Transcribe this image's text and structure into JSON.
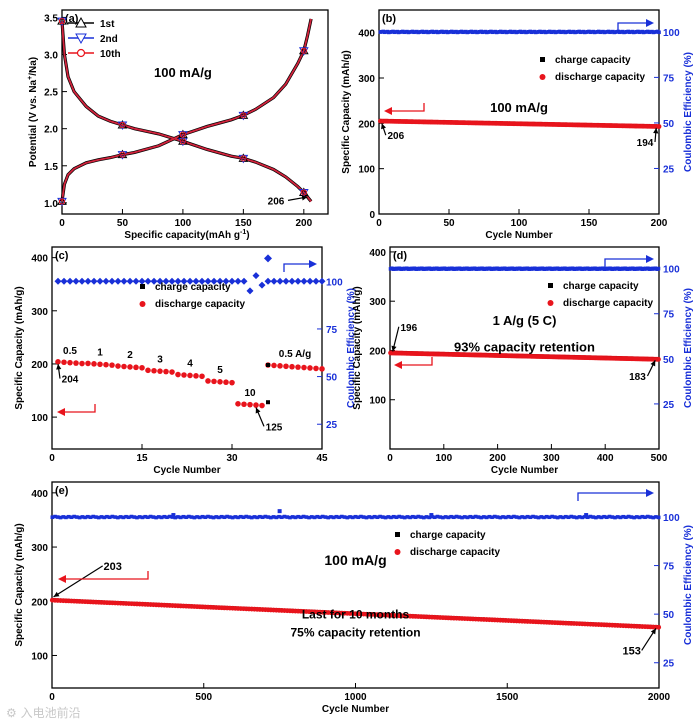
{
  "watermark": "⚙ 入电池前沿",
  "colors": {
    "black": "#000000",
    "red": "#e8141c",
    "blue": "#1930d8",
    "redline": "#d2233c",
    "axis": "#000000"
  },
  "chart_data": [
    {
      "id": "a",
      "type": "line",
      "panel_label": "(a)",
      "title": "",
      "xlabel": "Specific capacity(mAh g",
      "xlabel_sup": "-1",
      "xlabel_end": ")",
      "ylabel": "Potential (V vs. Na",
      "ylabel_sup": "+",
      "ylabel_end": "/Na)",
      "xlim": [
        0,
        220
      ],
      "ylim": [
        0.85,
        3.6
      ],
      "xticks": [
        0,
        50,
        100,
        150,
        200
      ],
      "yticks": [
        1.0,
        1.5,
        2.0,
        2.5,
        3.0,
        3.5
      ],
      "ytick_labels": [
        "1.0",
        "1.5",
        "2.0",
        "2.5",
        "3.0",
        "3.5"
      ],
      "legend": [
        "1st",
        "2nd",
        "10th"
      ],
      "annotations": [
        {
          "text": "100 mA/g",
          "x": 100,
          "y": 2.7
        },
        {
          "text": "206",
          "x": 177,
          "y": 0.98,
          "arrow_to": [
            203,
            1.08
          ]
        }
      ],
      "discharge": {
        "x": [
          0,
          2,
          5,
          10,
          20,
          30,
          40,
          50,
          60,
          80,
          100,
          120,
          140,
          150,
          160,
          175,
          185,
          195,
          200,
          203,
          206
        ],
        "y": [
          3.45,
          3.0,
          2.7,
          2.5,
          2.3,
          2.17,
          2.1,
          2.05,
          2.0,
          1.93,
          1.83,
          1.72,
          1.63,
          1.6,
          1.55,
          1.45,
          1.35,
          1.22,
          1.14,
          1.08,
          1.02
        ]
      },
      "charge": {
        "x": [
          0,
          2,
          5,
          10,
          20,
          30,
          40,
          50,
          60,
          80,
          100,
          120,
          140,
          150,
          160,
          175,
          185,
          195,
          200,
          203,
          206
        ],
        "y": [
          1.02,
          1.25,
          1.38,
          1.46,
          1.54,
          1.58,
          1.61,
          1.65,
          1.68,
          1.77,
          1.92,
          2.03,
          2.12,
          2.18,
          2.26,
          2.42,
          2.6,
          2.88,
          3.05,
          3.25,
          3.48
        ]
      },
      "marker_x": [
        0,
        50,
        100,
        150,
        200
      ]
    },
    {
      "id": "b",
      "type": "scatter",
      "panel_label": "(b)",
      "xlabel": "Cycle Number",
      "ylabel": "Specific Capacity (mAh/g)",
      "y2label": "Coulombic Efficiency (%)",
      "xlim": [
        0,
        200
      ],
      "ylim": [
        0,
        450
      ],
      "y2lim": [
        0,
        112
      ],
      "xticks": [
        0,
        50,
        100,
        150,
        200
      ],
      "yticks": [
        0,
        100,
        200,
        300,
        400
      ],
      "y2ticks": [
        25,
        50,
        75,
        100
      ],
      "legend": [
        "charge capacity",
        "discharge capacity"
      ],
      "annotations": [
        {
          "text": "100 mA/g",
          "x": 100,
          "y": 225
        },
        {
          "text": "206",
          "x": 12,
          "y": 165,
          "arrow_to": [
            2,
            200
          ]
        },
        {
          "text": "194",
          "x": 190,
          "y": 150,
          "arrow_to": [
            198,
            190
          ]
        }
      ],
      "cycles": 200,
      "capacity_start": 206,
      "capacity_end": 194,
      "efficiency": 100
    },
    {
      "id": "c",
      "type": "scatter",
      "panel_label": "(c)",
      "xlabel": "Cycle Number",
      "ylabel": "Specific Capacity (mAh/g)",
      "y2label": "Coulombic Efficiency (%)",
      "xlim": [
        0,
        45
      ],
      "ylim": [
        40,
        420
      ],
      "y2lim": [
        12,
        118
      ],
      "xticks": [
        0,
        15,
        30,
        45
      ],
      "yticks": [
        100,
        200,
        300,
        400
      ],
      "y2ticks": [
        25,
        50,
        75,
        100
      ],
      "legend": [
        "charge capacity",
        "discharge capacity"
      ],
      "rates": [
        {
          "label": "0.5",
          "start": 1,
          "end": 5,
          "cap": 204
        },
        {
          "label": "1",
          "start": 6,
          "end": 10,
          "cap": 201
        },
        {
          "label": "2",
          "start": 11,
          "end": 15,
          "cap": 196
        },
        {
          "label": "3",
          "start": 16,
          "end": 20,
          "cap": 188
        },
        {
          "label": "4",
          "start": 21,
          "end": 25,
          "cap": 180
        },
        {
          "label": "5",
          "start": 26,
          "end": 30,
          "cap": 168
        },
        {
          "label": "10",
          "start": 31,
          "end": 35,
          "cap": 125
        },
        {
          "label": "0.5 A/g",
          "start": 36,
          "end": 45,
          "cap": 198
        }
      ],
      "annotations": [
        {
          "text": "204",
          "x": 3,
          "y": 165,
          "arrow_to": [
            1,
            200
          ]
        },
        {
          "text": "125",
          "x": 37,
          "y": 75,
          "arrow_to": [
            34,
            118
          ]
        }
      ],
      "efficiency": 100
    },
    {
      "id": "d",
      "type": "scatter",
      "panel_label": "(d)",
      "xlabel": "Cycle Number",
      "ylabel": "Specific Capacity (mAh/g)",
      "y2label": "Coulombic Efficiency (%)",
      "xlim": [
        0,
        500
      ],
      "ylim": [
        0,
        410
      ],
      "y2lim": [
        0,
        112
      ],
      "xticks": [
        0,
        100,
        200,
        300,
        400,
        500
      ],
      "yticks": [
        100,
        200,
        300,
        400
      ],
      "y2ticks": [
        25,
        50,
        75,
        100
      ],
      "legend": [
        "charge capacity",
        "discharge capacity"
      ],
      "annotations": [
        {
          "text": "1 A/g (5 C)",
          "x": 250,
          "y": 252
        },
        {
          "text": "93% capacity retention",
          "x": 250,
          "y": 198
        },
        {
          "text": "196",
          "x": 35,
          "y": 240,
          "arrow_to": [
            5,
            198
          ]
        },
        {
          "text": "183",
          "x": 460,
          "y": 140,
          "arrow_to": [
            493,
            180
          ]
        }
      ],
      "cycles": 500,
      "capacity_start": 196,
      "capacity_end": 183,
      "efficiency": 100
    },
    {
      "id": "e",
      "type": "scatter",
      "panel_label": "(e)",
      "xlabel": "Cycle Number",
      "ylabel": "Specific Capacity (mAh/g)",
      "y2label": "Coulombic Efficiency (%)",
      "xlim": [
        0,
        2000
      ],
      "ylim": [
        40,
        420
      ],
      "y2lim": [
        12,
        118
      ],
      "xticks": [
        0,
        500,
        1000,
        1500,
        2000
      ],
      "yticks": [
        100,
        200,
        300,
        400
      ],
      "y2ticks": [
        25,
        50,
        75,
        100
      ],
      "legend": [
        "charge capacity",
        "discharge capacity"
      ],
      "annotations": [
        {
          "text": "100 mA/g",
          "x": 1000,
          "y": 267
        },
        {
          "text": "Last for 10 months",
          "x": 1000,
          "y": 168
        },
        {
          "text": "75% capacity retention",
          "x": 1000,
          "y": 135
        },
        {
          "text": "203",
          "x": 200,
          "y": 258,
          "arrow_to": [
            5,
            208
          ]
        },
        {
          "text": "153",
          "x": 1910,
          "y": 102,
          "arrow_to": [
            1990,
            150
          ]
        }
      ],
      "cycles": 2000,
      "capacity_start": 203,
      "capacity_end": 153,
      "efficiency": 100
    }
  ]
}
